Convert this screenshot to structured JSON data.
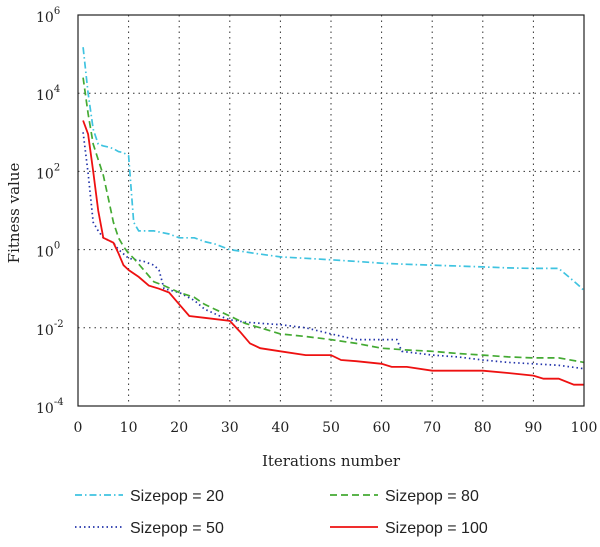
{
  "chart_data": {
    "type": "line",
    "xlabel": "Iterations number",
    "ylabel": "Fitness value",
    "xlim": [
      0,
      100
    ],
    "ylim_log10": [
      -4,
      6
    ],
    "y_scale": "log",
    "grid": true,
    "legend_position": "bottom",
    "x_ticks": [
      "0",
      "10",
      "20",
      "30",
      "40",
      "50",
      "60",
      "70",
      "80",
      "90",
      "100"
    ],
    "y_ticks": [
      {
        "base": "10",
        "exp": "-4"
      },
      {
        "base": "10",
        "exp": "-2"
      },
      {
        "base": "10",
        "exp": "0"
      },
      {
        "base": "10",
        "exp": "2"
      },
      {
        "base": "10",
        "exp": "4"
      },
      {
        "base": "10",
        "exp": "6"
      }
    ],
    "series": [
      {
        "name": "Sizepop = 20",
        "color": "#3fc3e0",
        "dash": "dashdot",
        "points": [
          [
            1,
            150000
          ],
          [
            2,
            10000
          ],
          [
            3,
            1200
          ],
          [
            4,
            500
          ],
          [
            5,
            450
          ],
          [
            6,
            420
          ],
          [
            7,
            380
          ],
          [
            8,
            320
          ],
          [
            9,
            300
          ],
          [
            10,
            250
          ],
          [
            11,
            5
          ],
          [
            12,
            3
          ],
          [
            15,
            3
          ],
          [
            18,
            2.5
          ],
          [
            20,
            2
          ],
          [
            23,
            2
          ],
          [
            25,
            1.6
          ],
          [
            27,
            1.4
          ],
          [
            30,
            1
          ],
          [
            35,
            0.8
          ],
          [
            40,
            0.65
          ],
          [
            45,
            0.6
          ],
          [
            50,
            0.55
          ],
          [
            55,
            0.5
          ],
          [
            60,
            0.45
          ],
          [
            65,
            0.42
          ],
          [
            70,
            0.4
          ],
          [
            75,
            0.38
          ],
          [
            80,
            0.36
          ],
          [
            85,
            0.34
          ],
          [
            90,
            0.33
          ],
          [
            95,
            0.33
          ],
          [
            97,
            0.2
          ],
          [
            99,
            0.12
          ],
          [
            100,
            0.09
          ]
        ]
      },
      {
        "name": "Sizepop = 50",
        "color": "#2233aa",
        "dash": "dotted",
        "points": [
          [
            1,
            1000
          ],
          [
            2,
            90
          ],
          [
            3,
            5
          ],
          [
            4,
            3
          ],
          [
            5,
            2
          ],
          [
            7,
            1.5
          ],
          [
            8,
            1
          ],
          [
            10,
            0.6
          ],
          [
            13,
            0.5
          ],
          [
            15,
            0.4
          ],
          [
            16,
            0.3
          ],
          [
            17,
            0.1
          ],
          [
            20,
            0.08
          ],
          [
            23,
            0.05
          ],
          [
            25,
            0.03
          ],
          [
            28,
            0.02
          ],
          [
            30,
            0.016
          ],
          [
            33,
            0.014
          ],
          [
            36,
            0.013
          ],
          [
            40,
            0.012
          ],
          [
            45,
            0.01
          ],
          [
            50,
            0.007
          ],
          [
            55,
            0.005
          ],
          [
            60,
            0.005
          ],
          [
            63,
            0.005
          ],
          [
            64,
            0.0025
          ],
          [
            70,
            0.002
          ],
          [
            75,
            0.0018
          ],
          [
            80,
            0.0015
          ],
          [
            85,
            0.0013
          ],
          [
            90,
            0.0012
          ],
          [
            95,
            0.0011
          ],
          [
            100,
            0.0009
          ]
        ]
      },
      {
        "name": "Sizepop = 80",
        "color": "#44aa33",
        "dash": "dashed",
        "points": [
          [
            1,
            25000
          ],
          [
            2,
            3000
          ],
          [
            3,
            500
          ],
          [
            4,
            200
          ],
          [
            5,
            80
          ],
          [
            6,
            20
          ],
          [
            7,
            5
          ],
          [
            8,
            2
          ],
          [
            9,
            1.2
          ],
          [
            10,
            0.8
          ],
          [
            11,
            0.6
          ],
          [
            13,
            0.3
          ],
          [
            15,
            0.15
          ],
          [
            17,
            0.12
          ],
          [
            20,
            0.08
          ],
          [
            23,
            0.06
          ],
          [
            25,
            0.04
          ],
          [
            27,
            0.03
          ],
          [
            30,
            0.02
          ],
          [
            33,
            0.013
          ],
          [
            36,
            0.01
          ],
          [
            40,
            0.007
          ],
          [
            45,
            0.006
          ],
          [
            50,
            0.005
          ],
          [
            55,
            0.004
          ],
          [
            60,
            0.003
          ],
          [
            65,
            0.0027
          ],
          [
            70,
            0.0025
          ],
          [
            75,
            0.0022
          ],
          [
            80,
            0.002
          ],
          [
            85,
            0.0018
          ],
          [
            90,
            0.0017
          ],
          [
            95,
            0.0017
          ],
          [
            100,
            0.0013
          ]
        ]
      },
      {
        "name": "Sizepop = 100",
        "color": "#ee1111",
        "dash": "solid",
        "points": [
          [
            1,
            2000
          ],
          [
            2,
            900
          ],
          [
            3,
            100
          ],
          [
            4,
            10
          ],
          [
            5,
            2
          ],
          [
            7,
            1.5
          ],
          [
            8,
            0.8
          ],
          [
            9,
            0.4
          ],
          [
            10,
            0.3
          ],
          [
            12,
            0.2
          ],
          [
            14,
            0.12
          ],
          [
            16,
            0.1
          ],
          [
            18,
            0.08
          ],
          [
            20,
            0.04
          ],
          [
            22,
            0.02
          ],
          [
            25,
            0.018
          ],
          [
            30,
            0.015
          ],
          [
            32,
            0.008
          ],
          [
            34,
            0.004
          ],
          [
            36,
            0.003
          ],
          [
            40,
            0.0025
          ],
          [
            45,
            0.002
          ],
          [
            50,
            0.002
          ],
          [
            52,
            0.0015
          ],
          [
            55,
            0.0014
          ],
          [
            60,
            0.0012
          ],
          [
            62,
            0.001
          ],
          [
            65,
            0.001
          ],
          [
            70,
            0.0008
          ],
          [
            80,
            0.0008
          ],
          [
            85,
            0.0007
          ],
          [
            90,
            0.0006
          ],
          [
            92,
            0.0005
          ],
          [
            95,
            0.0005
          ],
          [
            98,
            0.00035
          ],
          [
            100,
            0.00035
          ]
        ]
      }
    ]
  }
}
